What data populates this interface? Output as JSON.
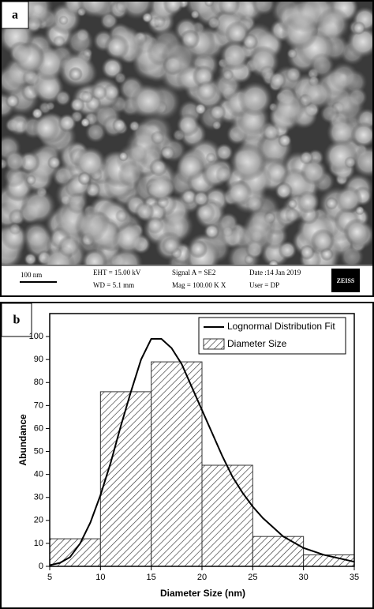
{
  "panel_a": {
    "label": "a",
    "scale_bar": "100 nm",
    "eht": "EHT = 15.00 kV",
    "wd": "WD = 5.1 mm",
    "signal": "Signal A = SE2",
    "mag": "Mag = 100.00 K X",
    "date": "Date :14 Jan 2019",
    "user": "User = DP",
    "brand": "ZEISS"
  },
  "chart_data": {
    "type": "histogram",
    "panel_label": "b",
    "x_label": "Diameter Size (nm)",
    "y_label": "Abundance",
    "xlim": [
      5,
      35
    ],
    "xticks": [
      5,
      10,
      15,
      20,
      25,
      30,
      35
    ],
    "ylim": [
      0,
      110
    ],
    "yticks": [
      0,
      10,
      20,
      30,
      40,
      50,
      60,
      70,
      80,
      90,
      100
    ],
    "histogram": {
      "name": "Diameter Size",
      "color": "#333333",
      "bins": [
        5,
        10,
        15,
        20,
        25,
        30,
        35
      ],
      "counts": [
        12,
        76,
        89,
        44,
        13,
        5
      ]
    },
    "series": [
      {
        "name": "Lognormal Distribution Fit",
        "color": "#000000",
        "x": [
          5,
          6,
          7,
          8,
          9,
          10,
          11,
          12,
          13,
          14,
          15,
          16,
          17,
          18,
          19,
          20,
          21,
          22,
          23,
          24,
          25,
          26,
          27,
          28,
          30,
          32,
          35
        ],
        "values": [
          0.5,
          1.5,
          4,
          10,
          19,
          31,
          45,
          61,
          76,
          90,
          99,
          99,
          95,
          88,
          78,
          68,
          58,
          48,
          39,
          32,
          26,
          21,
          17,
          13,
          8,
          5,
          2
        ]
      }
    ],
    "legend": "upper right"
  }
}
